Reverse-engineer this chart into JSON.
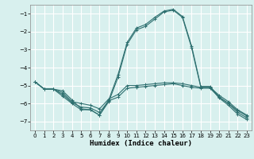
{
  "xlabel": "Humidex (Indice chaleur)",
  "bg_color": "#d8f0ee",
  "grid_color": "#ffffff",
  "line_color": "#2e7070",
  "xlim": [
    -0.5,
    23.5
  ],
  "ylim": [
    -7.5,
    -0.5
  ],
  "yticks": [
    -7,
    -6,
    -5,
    -4,
    -3,
    -2,
    -1
  ],
  "xticks": [
    0,
    1,
    2,
    3,
    4,
    5,
    6,
    7,
    8,
    9,
    10,
    11,
    12,
    13,
    14,
    15,
    16,
    17,
    18,
    19,
    20,
    21,
    22,
    23
  ],
  "lines": [
    {
      "x": [
        0,
        1,
        2,
        3,
        4,
        5,
        6,
        7,
        8,
        9,
        10,
        11,
        12,
        13,
        14,
        15,
        16,
        17,
        18,
        19,
        20,
        21,
        22,
        23
      ],
      "y": [
        -4.8,
        -5.2,
        -5.2,
        -5.3,
        -5.8,
        -6.3,
        -6.35,
        -6.65,
        -5.8,
        -4.4,
        -2.6,
        -1.8,
        -1.6,
        -1.2,
        -0.85,
        -0.75,
        -1.15,
        -2.8,
        -5.05,
        -5.05,
        -5.65,
        -6.0,
        -6.5,
        -6.8
      ]
    },
    {
      "x": [
        0,
        1,
        2,
        3,
        4,
        5,
        6,
        7,
        8,
        9,
        10,
        11,
        12,
        13,
        14,
        15,
        16,
        17,
        18,
        19,
        20,
        21,
        22,
        23
      ],
      "y": [
        -4.8,
        -5.2,
        -5.2,
        -5.6,
        -6.0,
        -6.35,
        -6.35,
        -6.65,
        -5.9,
        -4.55,
        -2.7,
        -1.9,
        -1.7,
        -1.3,
        -0.9,
        -0.8,
        -1.2,
        -2.9,
        -5.1,
        -5.1,
        -5.7,
        -6.1,
        -6.6,
        -6.9
      ]
    },
    {
      "x": [
        0,
        1,
        2,
        3,
        4,
        5,
        6,
        7,
        8,
        9,
        10,
        11,
        12,
        13,
        14,
        15,
        16,
        17,
        18,
        19,
        20,
        21,
        22,
        23
      ],
      "y": [
        -4.8,
        -5.2,
        -5.2,
        -5.4,
        -5.9,
        -6.0,
        -6.1,
        -6.3,
        -5.75,
        -5.5,
        -5.0,
        -5.0,
        -4.95,
        -4.9,
        -4.85,
        -4.85,
        -4.9,
        -5.0,
        -5.1,
        -5.1,
        -5.55,
        -5.9,
        -6.35,
        -6.65
      ]
    },
    {
      "x": [
        0,
        1,
        2,
        3,
        4,
        5,
        6,
        7,
        8,
        9,
        10,
        11,
        12,
        13,
        14,
        15,
        16,
        17,
        18,
        19,
        20,
        21,
        22,
        23
      ],
      "y": [
        -4.8,
        -5.2,
        -5.2,
        -5.5,
        -5.95,
        -6.2,
        -6.25,
        -6.5,
        -5.85,
        -5.65,
        -5.15,
        -5.1,
        -5.05,
        -5.0,
        -4.95,
        -4.9,
        -5.0,
        -5.1,
        -5.15,
        -5.15,
        -5.65,
        -6.0,
        -6.4,
        -6.7
      ]
    }
  ]
}
